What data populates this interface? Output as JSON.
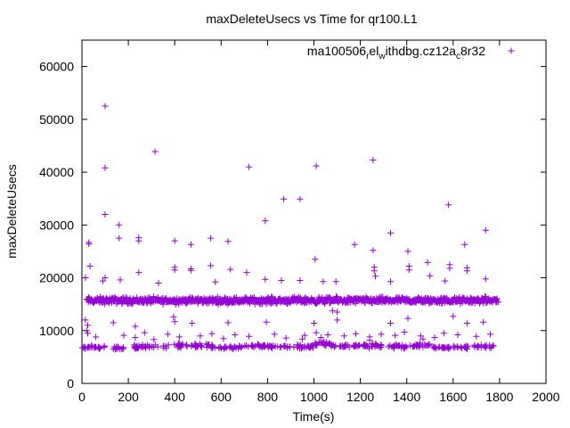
{
  "chart_data": {
    "type": "scatter",
    "title": "maxDeleteUsecs vs Time for qr100.L1",
    "xlabel": "Time(s)",
    "ylabel": "maxDeleteUsecs",
    "xlim": [
      0,
      2000
    ],
    "ylim": [
      0,
      65000
    ],
    "xticks": [
      "0",
      "200",
      "400",
      "600",
      "800",
      "1000",
      "1200",
      "1400",
      "1600",
      "1800",
      "2000"
    ],
    "yticks": [
      "0",
      "10000",
      "20000",
      "30000",
      "40000",
      "50000",
      "60000"
    ],
    "grid": false,
    "legend_position": "top-right",
    "marker": "+",
    "color": "#9400d3",
    "series": [
      {
        "name_parts": [
          "ma100506",
          "r",
          "el",
          "w",
          "ithdbg.cz12a",
          "c",
          "8r32"
        ],
        "name_sub": [
          false,
          true,
          false,
          true,
          false,
          true,
          false
        ],
        "outliers": [
          [
            100,
            52500
          ],
          [
            100,
            40800
          ],
          [
            100,
            32000
          ],
          [
            315,
            43900
          ],
          [
            720,
            41000
          ],
          [
            1010,
            41200
          ],
          [
            1255,
            42300
          ],
          [
            870,
            34900
          ],
          [
            940,
            34900
          ],
          [
            790,
            30800
          ],
          [
            160,
            30000
          ],
          [
            160,
            27500
          ],
          [
            245,
            27600
          ],
          [
            245,
            27000
          ],
          [
            30,
            26700
          ],
          [
            30,
            26400
          ],
          [
            400,
            27000
          ],
          [
            470,
            26300
          ],
          [
            555,
            27500
          ],
          [
            630,
            26900
          ],
          [
            1330,
            28500
          ],
          [
            1580,
            33800
          ],
          [
            1740,
            29000
          ],
          [
            1255,
            25200
          ],
          [
            1175,
            26300
          ],
          [
            1405,
            25000
          ],
          [
            1650,
            26300
          ],
          [
            1005,
            23500
          ],
          [
            1490,
            22900
          ],
          [
            1585,
            22500
          ],
          [
            1585,
            21800
          ],
          [
            1410,
            22200
          ],
          [
            1410,
            21500
          ],
          [
            1260,
            22000
          ],
          [
            1260,
            21300
          ],
          [
            1660,
            21900
          ],
          [
            1660,
            21300
          ],
          [
            35,
            22200
          ],
          [
            555,
            22300
          ],
          [
            400,
            22000
          ],
          [
            400,
            21500
          ],
          [
            470,
            21700
          ],
          [
            470,
            21400
          ],
          [
            640,
            21600
          ],
          [
            710,
            21000
          ],
          [
            245,
            21000
          ],
          [
            15,
            20000
          ],
          [
            90,
            19400
          ],
          [
            100,
            20000
          ],
          [
            165,
            19600
          ],
          [
            790,
            19700
          ],
          [
            860,
            19500
          ],
          [
            940,
            19500
          ],
          [
            1040,
            19300
          ],
          [
            1095,
            19300
          ],
          [
            1265,
            20300
          ],
          [
            1330,
            19300
          ],
          [
            1500,
            20400
          ],
          [
            1565,
            19400
          ],
          [
            1740,
            19800
          ],
          [
            575,
            19200
          ],
          [
            330,
            19000
          ],
          [
            15,
            12000
          ],
          [
            25,
            11000
          ],
          [
            400,
            11700
          ],
          [
            475,
            11400
          ],
          [
            630,
            11500
          ],
          [
            795,
            11600
          ],
          [
            1000,
            11400
          ],
          [
            1100,
            12000
          ],
          [
            1405,
            12300
          ],
          [
            1330,
            11400
          ],
          [
            1660,
            11400
          ],
          [
            1730,
            11600
          ],
          [
            395,
            12600
          ],
          [
            1100,
            13500
          ],
          [
            1080,
            13800
          ],
          [
            1600,
            12700
          ],
          [
            135,
            11500
          ],
          [
            230,
            10800
          ]
        ],
        "main_band": {
          "x_range": [
            20,
            1795
          ],
          "y_center": 15700,
          "y_spread": 900,
          "count": 900
        },
        "low_clusters": [
          {
            "x_range": [
              0,
              80
            ],
            "y_center": 6800,
            "y_spread": 500,
            "count": 26
          },
          {
            "x_range": [
              95,
              100
            ],
            "y_center": 6900,
            "y_spread": 400,
            "count": 3
          },
          {
            "x_range": [
              130,
              180
            ],
            "y_center": 6700,
            "y_spread": 450,
            "count": 14
          },
          {
            "x_range": [
              220,
              330
            ],
            "y_center": 7000,
            "y_spread": 650,
            "count": 28
          },
          {
            "x_range": [
              350,
              460
            ],
            "y_center": 7100,
            "y_spread": 600,
            "count": 26
          },
          {
            "x_range": [
              470,
              580
            ],
            "y_center": 7100,
            "y_spread": 650,
            "count": 28
          },
          {
            "x_range": [
              590,
              690
            ],
            "y_center": 6800,
            "y_spread": 550,
            "count": 24
          },
          {
            "x_range": [
              700,
              790
            ],
            "y_center": 7200,
            "y_spread": 600,
            "count": 24
          },
          {
            "x_range": [
              800,
              900
            ],
            "y_center": 7000,
            "y_spread": 550,
            "count": 24
          },
          {
            "x_range": [
              910,
              1000
            ],
            "y_center": 7000,
            "y_spread": 650,
            "count": 24
          },
          {
            "x_range": [
              1000,
              1100
            ],
            "y_center": 7400,
            "y_spread": 700,
            "count": 28
          },
          {
            "x_range": [
              1110,
              1200
            ],
            "y_center": 7100,
            "y_spread": 550,
            "count": 22
          },
          {
            "x_range": [
              1210,
              1300
            ],
            "y_center": 7100,
            "y_spread": 650,
            "count": 26
          },
          {
            "x_range": [
              1320,
              1400
            ],
            "y_center": 7000,
            "y_spread": 700,
            "count": 22
          },
          {
            "x_range": [
              1410,
              1500
            ],
            "y_center": 7200,
            "y_spread": 600,
            "count": 22
          },
          {
            "x_range": [
              1510,
              1590
            ],
            "y_center": 6800,
            "y_spread": 500,
            "count": 20
          },
          {
            "x_range": [
              1600,
              1670
            ],
            "y_center": 6900,
            "y_spread": 450,
            "count": 16
          },
          {
            "x_range": [
              1690,
              1780
            ],
            "y_center": 7000,
            "y_spread": 600,
            "count": 20
          }
        ],
        "mid_scatter": [
          [
            20,
            10000
          ],
          [
            25,
            9500
          ],
          [
            60,
            8800
          ],
          [
            180,
            9100
          ],
          [
            230,
            8700
          ],
          [
            270,
            9600
          ],
          [
            370,
            9300
          ],
          [
            420,
            8800
          ],
          [
            510,
            9000
          ],
          [
            560,
            9400
          ],
          [
            660,
            9200
          ],
          [
            720,
            8900
          ],
          [
            830,
            9300
          ],
          [
            880,
            8600
          ],
          [
            960,
            9100
          ],
          [
            1010,
            9600
          ],
          [
            1030,
            8700
          ],
          [
            1060,
            9200
          ],
          [
            1130,
            9000
          ],
          [
            1180,
            9400
          ],
          [
            1240,
            8800
          ],
          [
            1290,
            9300
          ],
          [
            1350,
            9100
          ],
          [
            1390,
            9700
          ],
          [
            1460,
            9000
          ],
          [
            1520,
            8700
          ],
          [
            1560,
            9500
          ],
          [
            1620,
            9200
          ],
          [
            1700,
            8900
          ],
          [
            1760,
            9300
          ],
          [
            310,
            8300
          ],
          [
            610,
            8500
          ],
          [
            950,
            8400
          ],
          [
            1240,
            8200
          ],
          [
            1470,
            8400
          ]
        ]
      }
    ]
  }
}
